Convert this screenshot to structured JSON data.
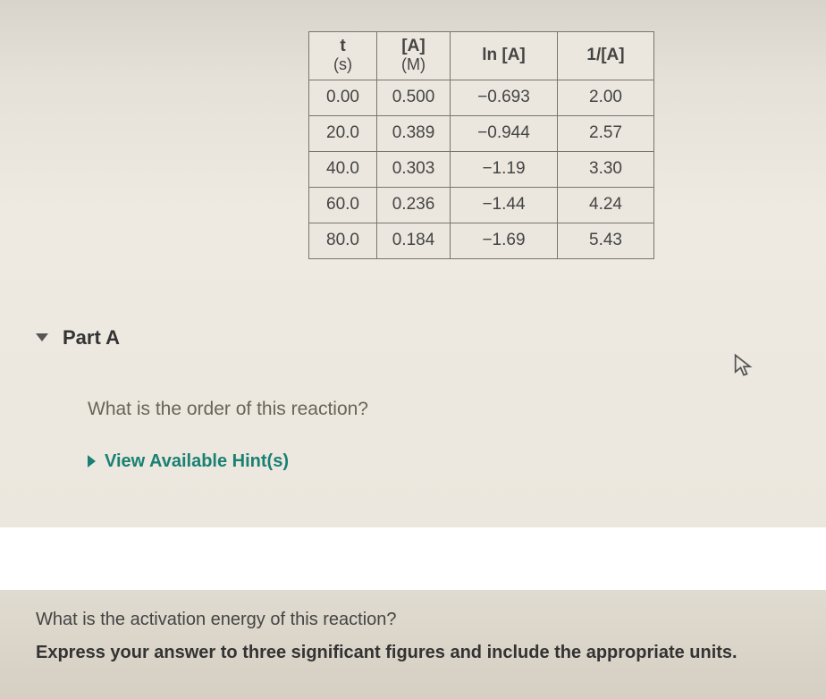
{
  "table": {
    "headers": {
      "col1_top": "t",
      "col1_bot": "(s)",
      "col2_top": "[A]",
      "col2_bot": "(M)",
      "col3": "ln [A]",
      "col4": "1/[A]"
    },
    "rows": [
      {
        "t": "0.00",
        "a": "0.500",
        "ln": "−0.693",
        "inv": "2.00"
      },
      {
        "t": "20.0",
        "a": "0.389",
        "ln": "−0.944",
        "inv": "2.57"
      },
      {
        "t": "40.0",
        "a": "0.303",
        "ln": "−1.19",
        "inv": "3.30"
      },
      {
        "t": "60.0",
        "a": "0.236",
        "ln": "−1.44",
        "inv": "4.24"
      },
      {
        "t": "80.0",
        "a": "0.184",
        "ln": "−1.69",
        "inv": "5.43"
      }
    ]
  },
  "part": {
    "label": "Part A",
    "question": "What is the order of this reaction?",
    "hint_label": "View Available Hint(s)"
  },
  "bottom": {
    "question": "What is the activation energy of this reaction?",
    "instruction": "Express your answer to three significant figures and include the appropriate units."
  },
  "colors": {
    "border": "#787470",
    "text": "#444",
    "hint": "#1a8073",
    "faded": "#a8a69a"
  }
}
